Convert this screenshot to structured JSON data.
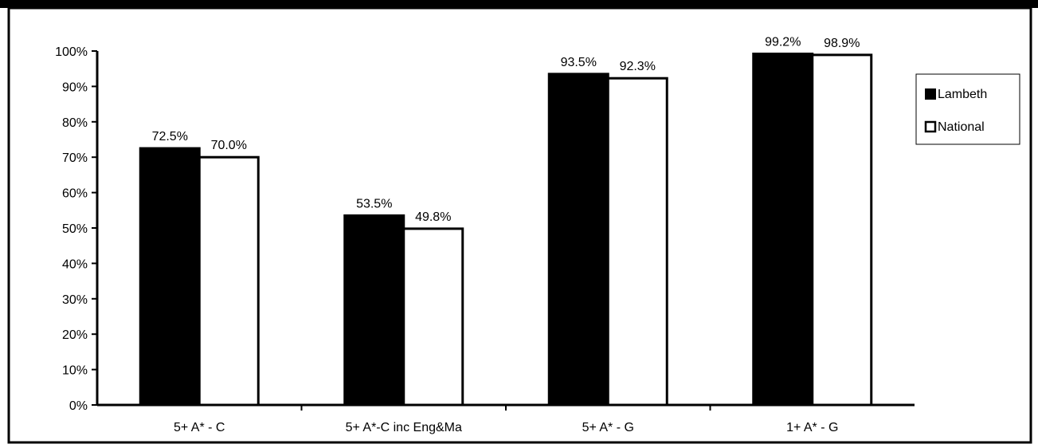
{
  "chart_data": {
    "type": "bar",
    "title": "",
    "xlabel": "",
    "ylabel": "",
    "categories": [
      "5+ A* - C",
      "5+ A*-C inc Eng&Ma",
      "5+ A* - G",
      "1+ A* - G"
    ],
    "series": [
      {
        "name": "Lambeth",
        "values": [
          72.5,
          53.5,
          93.5,
          99.2
        ],
        "labels": [
          "72.5%",
          "53.5%",
          "93.5%",
          "99.2%"
        ],
        "fill": "#000000"
      },
      {
        "name": "National",
        "values": [
          70.0,
          49.8,
          92.3,
          98.9
        ],
        "labels": [
          "70.0%",
          "49.8%",
          "92.3%",
          "98.9%"
        ],
        "fill": "#ffffff"
      }
    ],
    "ylim": [
      0,
      100
    ],
    "yticks": [
      0,
      10,
      20,
      30,
      40,
      50,
      60,
      70,
      80,
      90,
      100
    ],
    "ytick_labels": [
      "0%",
      "10%",
      "20%",
      "30%",
      "40%",
      "50%",
      "60%",
      "70%",
      "80%",
      "90%",
      "100%"
    ],
    "grid": false,
    "legend_position": "right",
    "colors": {
      "outline": "#000000",
      "background": "#ffffff"
    }
  }
}
